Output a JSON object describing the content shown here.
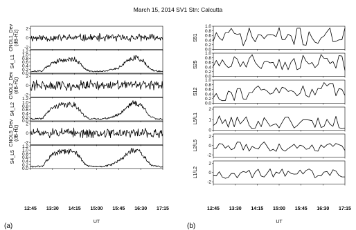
{
  "title": "March 15, 2014 SV1 Stn: Calcutta",
  "colors": {
    "line": "#000000",
    "background": "#ffffff"
  },
  "chart_data": [
    {
      "type": "line",
      "panel_label": "(a)",
      "xlabel": "UT",
      "x_ticks": [
        "12:45",
        "13:30",
        "14:15",
        "15:00",
        "15:45",
        "16:30",
        "17:15"
      ],
      "x_range": [
        "12:45",
        "17:15"
      ],
      "grid": false,
      "subplots": [
        {
          "ylabel": "CNOL1_Dev (dB-Hz)",
          "ylim": [
            -2.5,
            2.5
          ],
          "yticks": [
            "2",
            "0",
            "-2"
          ],
          "shape": "noise",
          "amplitude": 1.0,
          "baseline": 0,
          "seed": 11
        },
        {
          "ylabel": "S4_L1",
          "ylim": [
            0,
            1.25
          ],
          "yticks": [
            "1.2",
            "1.0",
            "0.8",
            "0.6",
            "0.4",
            "0.2",
            "0.0"
          ],
          "shape": "bursts",
          "baseline": 0.1,
          "profile_x": [
            "12:45",
            "13:10",
            "13:15",
            "13:30",
            "13:45",
            "14:00",
            "14:15",
            "14:25",
            "14:35",
            "14:45",
            "15:00",
            "15:15",
            "15:30",
            "15:45",
            "15:50",
            "16:00",
            "16:10",
            "16:20",
            "16:30",
            "16:40",
            "16:50",
            "17:00",
            "17:15"
          ],
          "profile_y": [
            0.1,
            0.12,
            0.3,
            0.55,
            0.7,
            0.72,
            0.78,
            0.55,
            0.25,
            0.12,
            0.1,
            0.12,
            0.18,
            0.3,
            0.4,
            0.6,
            0.8,
            0.85,
            0.75,
            0.55,
            0.2,
            0.12,
            0.1
          ],
          "seed": 21
        },
        {
          "ylabel": "CNOL2_Dev (dB-Hz)",
          "ylim": [
            -2.5,
            2.5
          ],
          "yticks": [
            "2",
            "0",
            "-2"
          ],
          "shape": "noise",
          "amplitude": 1.3,
          "baseline": 0,
          "seed": 31
        },
        {
          "ylabel": "S4_L2",
          "ylim": [
            0,
            1.25
          ],
          "yticks": [
            "1.2",
            "1.0",
            "0.8",
            "0.6",
            "0.4",
            "0.2",
            "0.0"
          ],
          "shape": "bursts",
          "baseline": 0.1,
          "profile_x": [
            "12:45",
            "13:10",
            "13:15",
            "13:30",
            "13:45",
            "14:00",
            "14:15",
            "14:25",
            "14:35",
            "14:45",
            "15:00",
            "15:15",
            "15:30",
            "15:45",
            "15:50",
            "16:00",
            "16:10",
            "16:20",
            "16:30",
            "16:40",
            "16:50",
            "17:00",
            "17:15"
          ],
          "profile_y": [
            0.1,
            0.12,
            0.35,
            0.7,
            0.85,
            0.85,
            0.9,
            0.6,
            0.25,
            0.12,
            0.1,
            0.12,
            0.18,
            0.35,
            0.45,
            0.7,
            0.95,
            0.95,
            0.85,
            0.6,
            0.22,
            0.12,
            0.1
          ],
          "seed": 41
        },
        {
          "ylabel": "CNOL5_Dev (dB-Hz)",
          "ylim": [
            -2.5,
            2.5
          ],
          "yticks": [
            "2",
            "0",
            "-2"
          ],
          "shape": "noise",
          "amplitude": 1.2,
          "baseline": 0,
          "seed": 51
        },
        {
          "ylabel": "S4_L5",
          "ylim": [
            0,
            1.25
          ],
          "yticks": [
            "1.2",
            "1.0",
            "0.8",
            "0.6",
            "0.4",
            "0.2",
            "0.0"
          ],
          "shape": "bursts",
          "baseline": 0.1,
          "profile_x": [
            "12:45",
            "13:10",
            "13:15",
            "13:30",
            "13:45",
            "14:00",
            "14:15",
            "14:25",
            "14:35",
            "14:45",
            "15:00",
            "15:15",
            "15:30",
            "15:45",
            "15:50",
            "16:00",
            "16:10",
            "16:20",
            "16:30",
            "16:40",
            "16:50",
            "17:00",
            "17:15"
          ],
          "profile_y": [
            0.1,
            0.12,
            0.35,
            0.75,
            0.9,
            0.9,
            0.95,
            0.65,
            0.25,
            0.12,
            0.1,
            0.12,
            0.2,
            0.4,
            0.5,
            0.75,
            0.95,
            0.95,
            0.85,
            0.55,
            0.2,
            0.12,
            0.1
          ],
          "seed": 61
        }
      ]
    },
    {
      "type": "line",
      "panel_label": "(b)",
      "xlabel": "UT",
      "x_ticks": [
        "12:45",
        "13:30",
        "14:15",
        "15:00",
        "15:45",
        "16:30",
        "17:15"
      ],
      "x_range": [
        "12:45",
        "17:15"
      ],
      "grid": false,
      "subplots": [
        {
          "ylabel": "S51",
          "ylim": [
            0,
            1.0
          ],
          "yticks": [
            "1.0",
            "0.8",
            "0.6",
            "0.4",
            "0.2",
            "0.0"
          ],
          "shape": "zigzag",
          "n_points": 45,
          "vmin": 0.15,
          "vmax": 0.95,
          "seed": 71
        },
        {
          "ylabel": "S25",
          "ylim": [
            0,
            1.0
          ],
          "yticks": [
            "1.0",
            "0.8",
            "0.6",
            "0.4",
            "0.2",
            "0.0"
          ],
          "shape": "zigzag",
          "n_points": 45,
          "vmin": 0.25,
          "vmax": 0.95,
          "seed": 81
        },
        {
          "ylabel": "S12",
          "ylim": [
            0,
            1.0
          ],
          "yticks": [
            "1.0",
            "0.8",
            "0.6",
            "0.4",
            "0.2",
            "0.0"
          ],
          "shape": "zigzag",
          "n_points": 45,
          "vmin": 0.1,
          "vmax": 0.95,
          "trend": 0.25,
          "seed": 91
        },
        {
          "ylabel": "L5/L1",
          "ylim": [
            0,
            2.2
          ],
          "yticks": [
            "2",
            "1",
            "0"
          ],
          "shape": "zigzag",
          "n_points": 45,
          "vmin": 0.1,
          "vmax": 1.4,
          "seed": 101
        },
        {
          "ylabel": "L2/L5",
          "ylim": [
            -2.5,
            2.5
          ],
          "yticks": [
            "2",
            "0",
            "-2"
          ],
          "shape": "zigzag",
          "n_points": 45,
          "vmin": -1.3,
          "vmax": 0.8,
          "seed": 111
        },
        {
          "ylabel": "L1/L2",
          "ylim": [
            -2.5,
            2.5
          ],
          "yticks": [
            "2",
            "0",
            "-2"
          ],
          "shape": "zigzag",
          "n_points": 45,
          "vmin": -1.3,
          "vmax": 0.9,
          "seed": 121
        }
      ]
    }
  ]
}
